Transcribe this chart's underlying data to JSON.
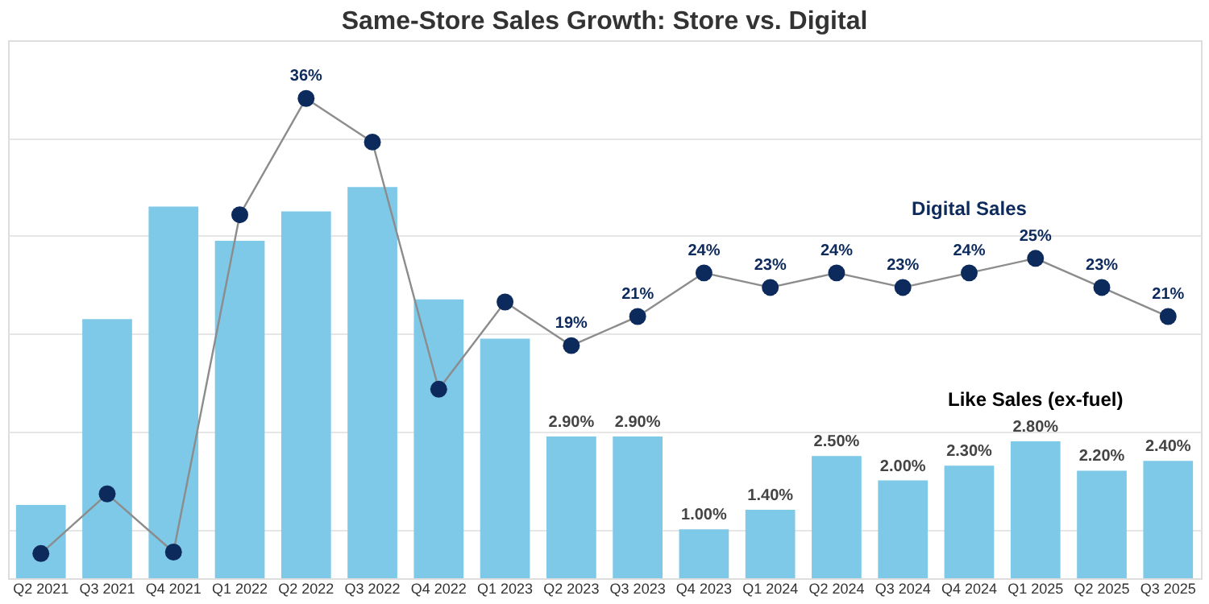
{
  "chart_data": {
    "type": "bar",
    "title": "Same-Store Sales Growth: Store vs. Digital",
    "categories": [
      "Q2 2021",
      "Q3 2021",
      "Q4 2021",
      "Q1 2022",
      "Q2 2022",
      "Q3 2022",
      "Q4 2022",
      "Q1 2023",
      "Q2 2023",
      "Q3 2023",
      "Q4 2023",
      "Q1 2024",
      "Q2 2024",
      "Q3 2024",
      "Q4 2024",
      "Q1 2025",
      "Q2 2025",
      "Q3 2025"
    ],
    "series": [
      {
        "name": "Like Sales (ex-fuel)",
        "color": "#7ec8e8",
        "values": [
          1.5,
          5.3,
          7.6,
          6.9,
          7.5,
          8.0,
          5.7,
          4.9,
          2.9,
          2.9,
          1.0,
          1.4,
          2.5,
          2.0,
          2.3,
          2.8,
          2.2,
          2.4
        ],
        "value_labels": [
          null,
          null,
          null,
          null,
          null,
          null,
          null,
          null,
          "2.90%",
          "2.90%",
          "1.00%",
          "1.40%",
          "2.50%",
          "2.00%",
          "2.30%",
          "2.80%",
          "2.20%",
          "2.40%"
        ]
      },
      {
        "name": "Digital Sales",
        "type": "line",
        "axis": "y2",
        "color": "#0d2a5c",
        "values": [
          4.7,
          8.8,
          4.8,
          28,
          36,
          33,
          16,
          22,
          19,
          21,
          24,
          23,
          24,
          23,
          24,
          25,
          23,
          21
        ],
        "value_labels": [
          null,
          null,
          null,
          null,
          "36%",
          null,
          null,
          null,
          "19%",
          "21%",
          "24%",
          "23%",
          "24%",
          "23%",
          "24%",
          "25%",
          "23%",
          "21%"
        ]
      }
    ],
    "ylim": [
      0,
      11
    ],
    "yticks": [
      {
        "value": 1,
        "label": null
      },
      {
        "value": 3,
        "label": null
      },
      {
        "value": 5,
        "label": null
      },
      {
        "value": 7,
        "label": null
      },
      {
        "value": 9,
        "label": null
      }
    ],
    "y2lim": [
      3,
      40
    ],
    "grid": "y",
    "tick_labels": "x",
    "marker": "circle",
    "line_style": "solid",
    "legend": false
  }
}
